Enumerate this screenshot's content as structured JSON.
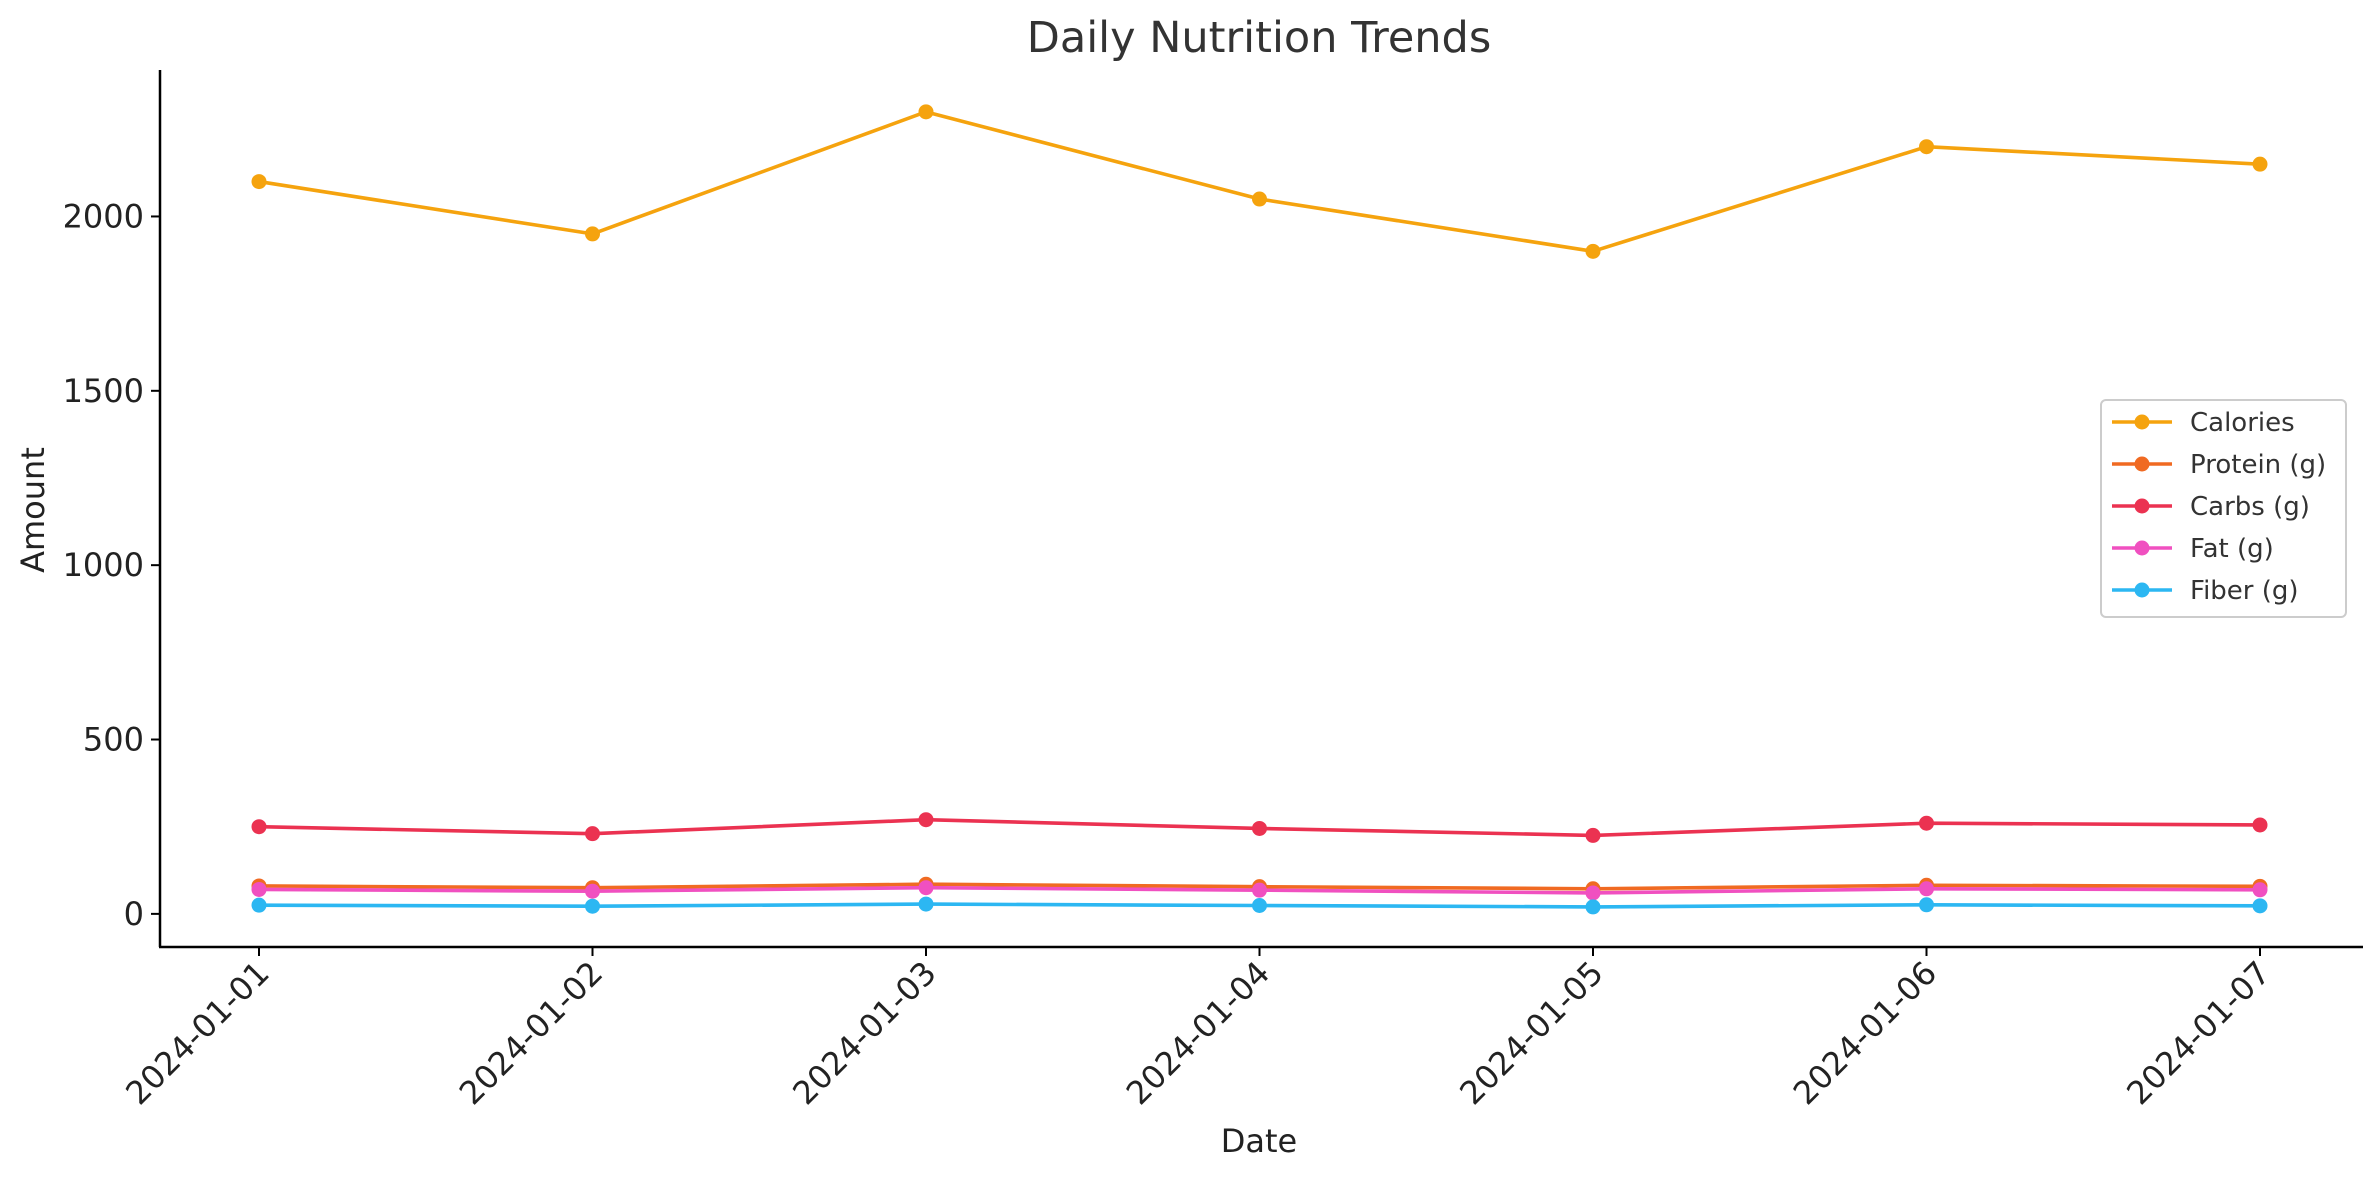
{
  "chart_data": {
    "type": "line",
    "title": "Daily Nutrition Trends",
    "xlabel": "Date",
    "ylabel": "Amount",
    "x": [
      "2024-01-01",
      "2024-01-02",
      "2024-01-03",
      "2024-01-04",
      "2024-01-05",
      "2024-01-06",
      "2024-01-07"
    ],
    "ylim": [
      -95,
      2420
    ],
    "yticks": [
      0,
      500,
      1000,
      1500,
      2000
    ],
    "grid": false,
    "legend_position": "right",
    "series": [
      {
        "name": "Calories",
        "color": "#F5A30E",
        "values": [
          2100,
          1950,
          2300,
          2050,
          1900,
          2200,
          2150
        ]
      },
      {
        "name": "Protein (g)",
        "color": "#F06A22",
        "values": [
          80,
          75,
          85,
          78,
          72,
          82,
          79
        ]
      },
      {
        "name": "Carbs (g)",
        "color": "#EB3251",
        "values": [
          250,
          230,
          270,
          245,
          225,
          260,
          255
        ]
      },
      {
        "name": "Fat (g)",
        "color": "#F050C0",
        "values": [
          70,
          65,
          75,
          68,
          60,
          72,
          69
        ]
      },
      {
        "name": "Fiber (g)",
        "color": "#2CB7F2",
        "values": [
          25,
          22,
          28,
          24,
          20,
          26,
          23
        ]
      }
    ]
  }
}
